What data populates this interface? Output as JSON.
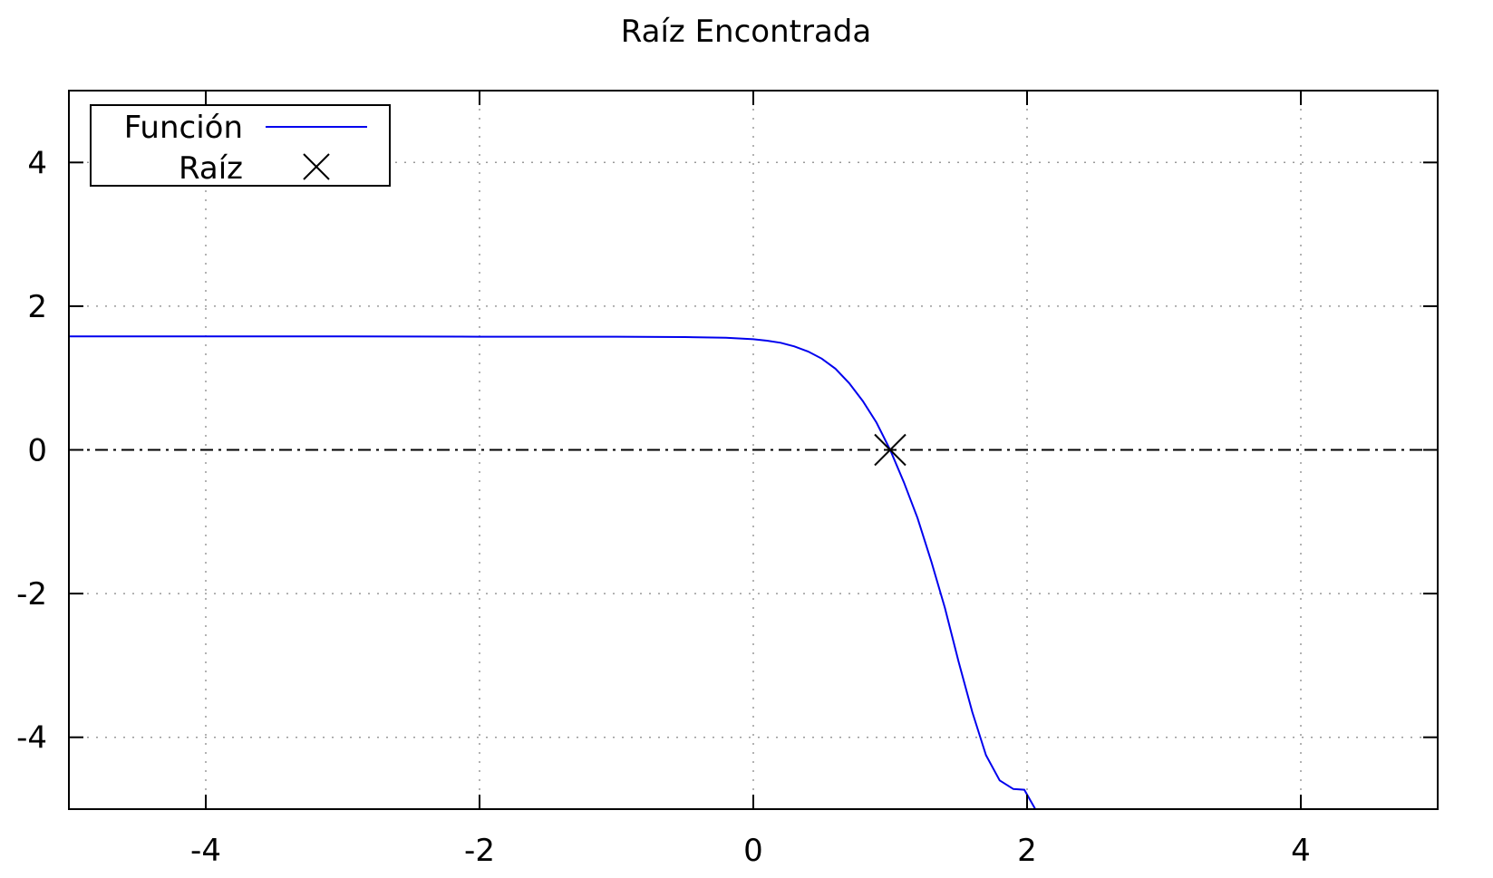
{
  "chart_data": {
    "type": "line",
    "title": "Raíz Encontrada",
    "xlabel": "",
    "ylabel": "",
    "xlim": [
      -5,
      5
    ],
    "ylim": [
      -5,
      5
    ],
    "x_ticks": [
      -4,
      -2,
      0,
      2,
      4
    ],
    "x_tick_labels": [
      "-4",
      "-2",
      "0",
      "2",
      "4"
    ],
    "y_ticks": [
      -4,
      -2,
      0,
      2,
      4
    ],
    "y_tick_labels": [
      "-4",
      "-2",
      "0",
      "2",
      "4"
    ],
    "grid": true,
    "zero_line": true,
    "legend_position": "top-left",
    "series": [
      {
        "name": "Función",
        "kind": "line",
        "color": "#0000ee",
        "points": [
          [
            -5,
            1.58
          ],
          [
            -4,
            1.58
          ],
          [
            -3,
            1.58
          ],
          [
            -2,
            1.575
          ],
          [
            -1,
            1.575
          ],
          [
            -0.5,
            1.57
          ],
          [
            -0.2,
            1.56
          ],
          [
            0,
            1.54
          ],
          [
            0.1,
            1.52
          ],
          [
            0.2,
            1.49
          ],
          [
            0.3,
            1.44
          ],
          [
            0.4,
            1.37
          ],
          [
            0.5,
            1.27
          ],
          [
            0.6,
            1.13
          ],
          [
            0.7,
            0.93
          ],
          [
            0.8,
            0.68
          ],
          [
            0.9,
            0.38
          ],
          [
            1.0,
            0.0
          ],
          [
            1.1,
            -0.45
          ],
          [
            1.2,
            -0.95
          ],
          [
            1.3,
            -1.55
          ],
          [
            1.4,
            -2.2
          ],
          [
            1.5,
            -2.95
          ],
          [
            1.6,
            -3.65
          ],
          [
            1.7,
            -4.25
          ],
          [
            1.8,
            -4.6
          ],
          [
            1.9,
            -4.72
          ],
          [
            1.98,
            -4.73
          ],
          [
            2.06,
            -5.0
          ]
        ]
      },
      {
        "name": "Raíz",
        "kind": "points",
        "marker": "x",
        "color": "#000000",
        "points": [
          [
            1.0,
            0.0
          ]
        ]
      }
    ]
  }
}
